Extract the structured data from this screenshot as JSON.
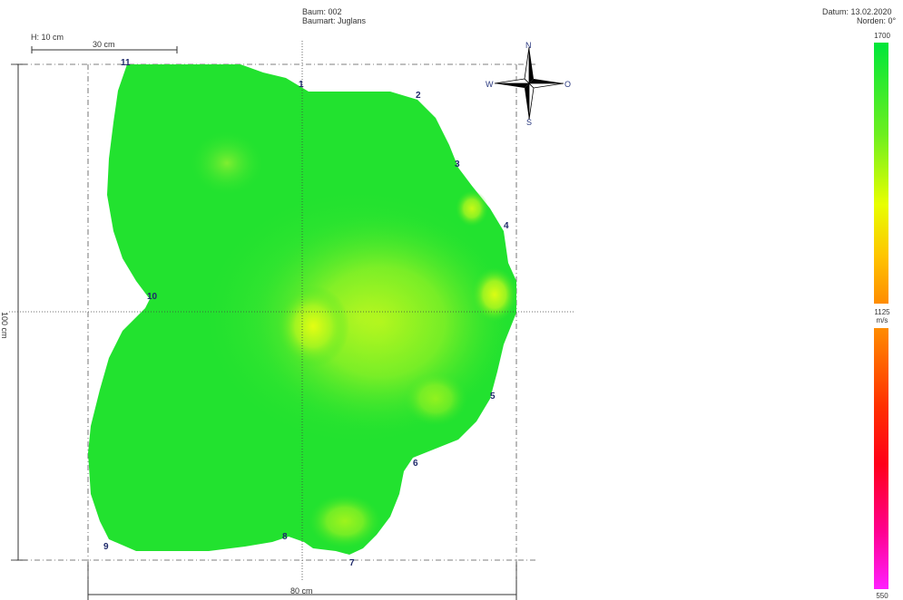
{
  "header": {
    "tree_id": "Baum: 002",
    "species": "Baumart: Juglans",
    "date": "Datum: 13.02.2020",
    "north": "Norden: 0°"
  },
  "measures": {
    "height": "H: 10 cm",
    "scale_bar": "30 cm",
    "vertical": "100 cm",
    "horizontal": "80 cm"
  },
  "compass": {
    "n": "N",
    "s": "S",
    "w": "W",
    "o": "O"
  },
  "sensors": [
    "1",
    "2",
    "3",
    "4",
    "5",
    "6",
    "7",
    "8",
    "9",
    "10",
    "11"
  ],
  "color_scale": {
    "max": "1700",
    "mid": "1125",
    "unit": "m/s",
    "min": "550",
    "colors": {
      "high": "#00e63a",
      "mid_high": "#f0ff00",
      "orange": "#ff8a00",
      "red": "#ff0000",
      "magenta": "#ff00ff"
    }
  }
}
